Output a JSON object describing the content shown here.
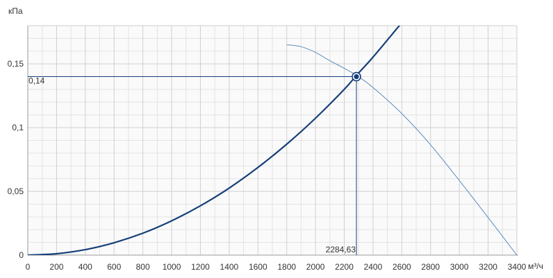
{
  "chart_data": {
    "type": "line",
    "ylabel": "кПа",
    "xlabel": "м³/ч",
    "xlim": [
      0,
      3400
    ],
    "ylim": [
      0,
      0.18
    ],
    "grid": true,
    "x_ticks": [
      0,
      200,
      400,
      600,
      800,
      1000,
      1200,
      1400,
      1600,
      1800,
      2000,
      2200,
      2400,
      2600,
      2800,
      3000,
      3200,
      3400
    ],
    "x_tick_labels": [
      "0",
      "200",
      "400",
      "600",
      "800",
      "1000",
      "1200",
      "1400",
      "1600",
      "1800",
      "2000",
      "2200",
      "2400",
      "2600",
      "2800",
      "3000",
      "3200",
      "3400"
    ],
    "y_ticks": [
      0,
      0.05,
      0.1,
      0.15
    ],
    "y_tick_labels": [
      "0",
      "0,05",
      "0,1",
      "0,15"
    ],
    "series": [
      {
        "role": "system",
        "color": "#163f78",
        "x": [
          0,
          200,
          400,
          600,
          800,
          1000,
          1200,
          1400,
          1600,
          1800,
          2000,
          2200,
          2284.63,
          2400,
          2590
        ],
        "y": [
          0,
          0.0011,
          0.0043,
          0.0097,
          0.0172,
          0.0269,
          0.0387,
          0.0526,
          0.0688,
          0.087,
          0.1074,
          0.13,
          0.141,
          0.1553,
          0.181
        ]
      },
      {
        "role": "fan",
        "color": "#5b8cc0",
        "x": [
          1800,
          1900,
          2000,
          2100,
          2200,
          2284.63,
          2400,
          2600,
          2800,
          3000,
          3200,
          3400
        ],
        "y": [
          0.165,
          0.1635,
          0.159,
          0.1525,
          0.1465,
          0.141,
          0.1315,
          0.111,
          0.0865,
          0.0585,
          0.0295,
          0.0
        ]
      }
    ],
    "operating_point": {
      "x": 2284.63,
      "y": 0.14,
      "x_label": "2284,63",
      "y_label": "0,14"
    }
  }
}
